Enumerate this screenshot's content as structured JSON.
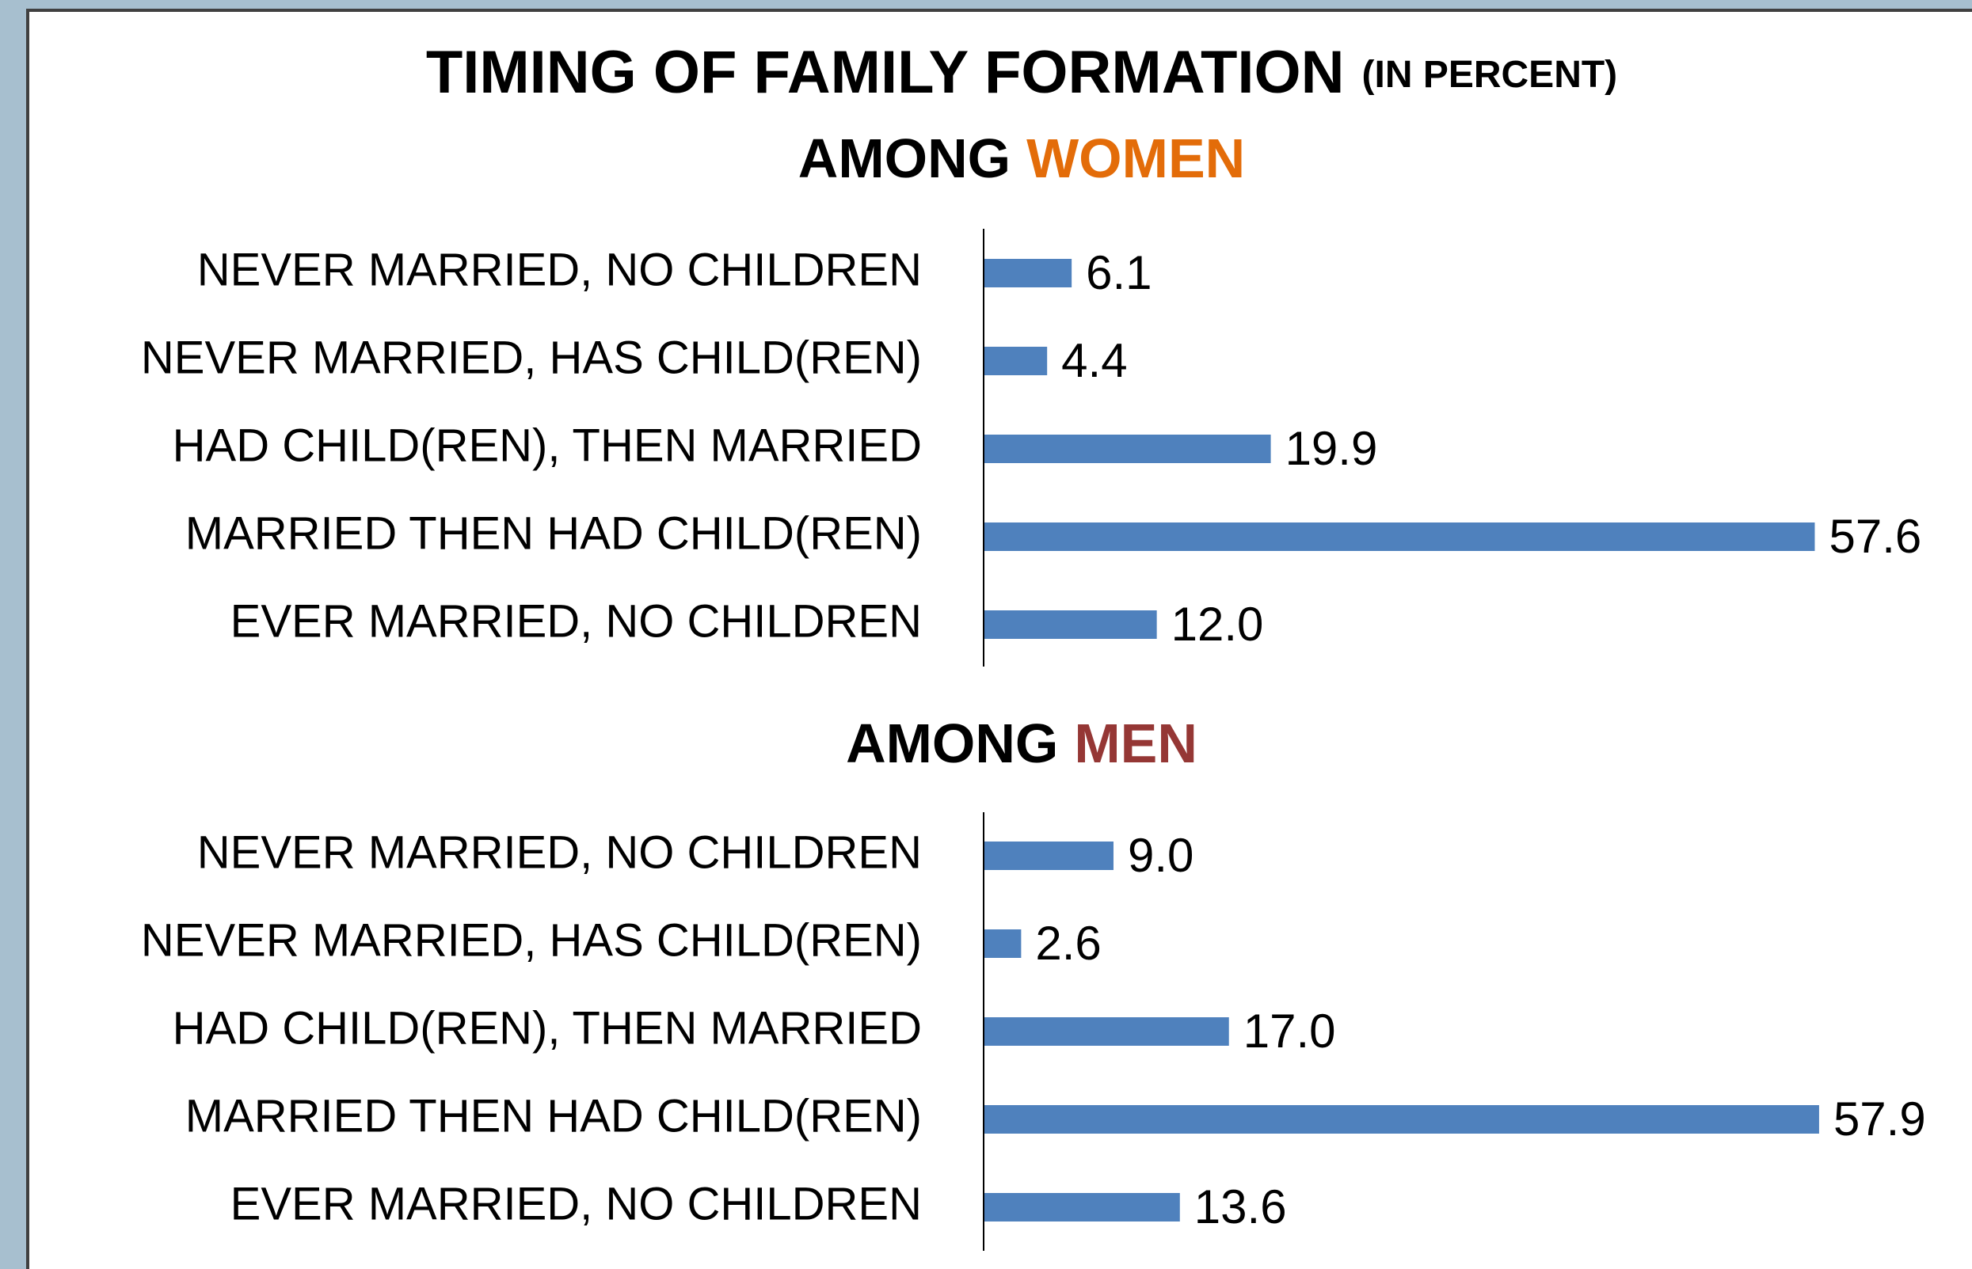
{
  "title": "TIMING OF FAMILY FORMATION",
  "title_suffix": "(IN PERCENT)",
  "chart_data": [
    {
      "type": "bar",
      "orientation": "horizontal",
      "title": "AMONG",
      "title_highlight": "WOMEN",
      "title_highlight_color": "#e36c09",
      "categories": [
        "NEVER MARRIED, NO CHILDREN",
        "NEVER MARRIED, HAS CHILD(REN)",
        "HAD CHILD(REN), THEN MARRIED",
        "MARRIED THEN HAD CHILD(REN)",
        "EVER MARRIED, NO CHILDREN"
      ],
      "values": [
        6.1,
        4.4,
        19.9,
        57.6,
        12
      ],
      "value_labels": [
        "6.1",
        "4.4",
        "19.9",
        "57.6",
        "12.0"
      ],
      "color": "#4f81bd"
    },
    {
      "type": "bar",
      "orientation": "horizontal",
      "title": "AMONG",
      "title_highlight": "MEN",
      "title_highlight_color": "#953735",
      "categories": [
        "NEVER MARRIED, NO CHILDREN",
        "NEVER MARRIED, HAS CHILD(REN)",
        "HAD CHILD(REN), THEN MARRIED",
        "MARRIED THEN HAD CHILD(REN)",
        "EVER MARRIED, NO CHILDREN"
      ],
      "values": [
        9,
        2.6,
        17,
        57.9,
        13.6
      ],
      "value_labels": [
        "9.0",
        "2.6",
        "17.0",
        "57.9",
        "13.6"
      ],
      "color": "#4f81bd"
    }
  ]
}
